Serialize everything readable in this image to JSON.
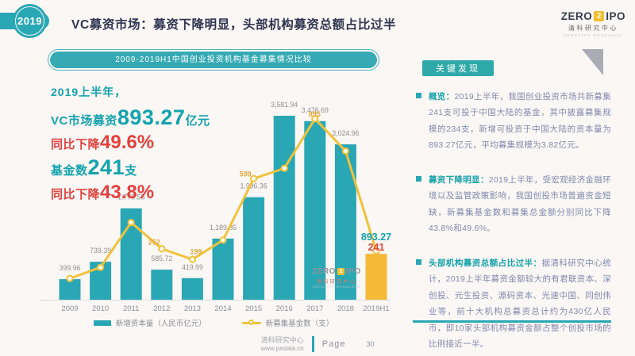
{
  "header": {
    "year": "2019",
    "title": "VC募资市场：募资下降明显，头部机构募资总额占比过半"
  },
  "logo": {
    "zero": "ZERO",
    "two": "2",
    "ipo": "IPO",
    "org": "清科研究中心",
    "tagline": "ZERO2IPO RESEARCH"
  },
  "chart_banner": "2009-2019H1中国创业投资机构基金募集情况比较",
  "stats": {
    "line1": "2019上半年，",
    "line2_prefix": "VC市场募资",
    "line2_value": "893.27",
    "line2_suffix": "亿元",
    "line3_prefix": "同比下降",
    "line3_value": "49.6%",
    "line4_prefix": "基金数",
    "line4_value": "241",
    "line4_suffix": "支",
    "line5_prefix": "同比下降",
    "line5_value": "43.8%"
  },
  "chart_data": {
    "type": "bar",
    "title": "2009-2019H1中国创业投资机构基金募集情况比较",
    "categories": [
      "2009",
      "2010",
      "2011",
      "2012",
      "2013",
      "2014",
      "2015",
      "2016",
      "2017",
      "2018",
      "2019H1"
    ],
    "series": [
      {
        "name": "新增资本量（人民币亿元）",
        "type": "bar",
        "values": [
          399.96,
          739.39,
          1779.55,
          585.72,
          419.99,
          1189.85,
          1996.36,
          3581.94,
          3476.69,
          3024.96,
          893.27
        ],
        "labels": [
          "399.96",
          "739.39",
          "1,779.55",
          "585.72",
          "419.99",
          "1,189.85",
          "1,996.36",
          "3,581.94",
          "3,476.69",
          "3,024.96",
          ""
        ]
      },
      {
        "name": "新募集基金数（支）",
        "type": "line",
        "values": [
          105,
          160,
          382,
          252,
          199,
          295,
          599,
          650,
          895,
          735,
          241
        ],
        "visible_labels": [
          {
            "index": 3,
            "text": "252",
            "dx": -17,
            "dy": -5
          },
          {
            "index": 4,
            "text": "199",
            "dx": -3,
            "dy": -7
          },
          {
            "index": 6,
            "text": "599",
            "dx": -18,
            "dy": -3
          },
          {
            "index": 8,
            "text": "895",
            "dx": -8,
            "dy": -3
          }
        ]
      }
    ],
    "h1_labels": {
      "capital": "893.27",
      "funds": "241"
    },
    "legend": [
      "新增资本量（人民币亿元）",
      "新募集基金数（支）"
    ],
    "ylim": [
      0,
      3800
    ],
    "legend_position": "bottom-center",
    "grid": false,
    "colors": {
      "bar": "#2aa7b4",
      "bar_h1": "#f6b937",
      "line": "#f0c23c",
      "bar_label": "#8f8f8f",
      "axis_label": "#8a8f98",
      "line_label": "#e2a838",
      "h1_capital": "#12a3ad",
      "h1_funds": "#e0443e",
      "axis": "#d9dcdd"
    }
  },
  "key_findings": {
    "title": "关键发现",
    "bullets": [
      {
        "lead": "概览：",
        "body": "2019上半年，我国创业投资市场共新募集241支可投于中国大陆的基金，其中披露募集规模的234支，新增可投资于中国大陆的资本量为893.27亿元，平均募集规模为3.82亿元。"
      },
      {
        "lead": "募资下降明显：",
        "body": "2019上半年，受宏观经济金融环境以及监管政策影响，我国创投市场普遍资金短缺，新募集基金数和募集总金额分别同比下降43.8%和49.6%。"
      },
      {
        "lead": "头部机构募资总额占比过半：",
        "body": "据清科研究中心统计，2019上半年募资金额较大的有君联资本、深创投、元生投资、源码资本、光速中国、同创伟业等，前十大机构总募资总计约为430亿人民币，即10家头部机构募资金额占整个创投市场的比例接近一半。"
      }
    ]
  },
  "watermark": {
    "zero": "ZERO",
    "two": "2",
    "ipo": "IPO",
    "org": "清科研究中心",
    "tagline": "ZERO2IPO RESEARCH"
  },
  "footer": {
    "org": "清科研究中心",
    "site": "www.pedata.cn",
    "page_label": "Page",
    "page_number": "30"
  }
}
